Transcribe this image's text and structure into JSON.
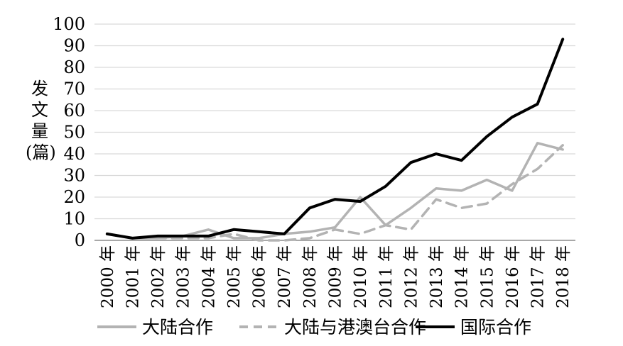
{
  "chart_data": {
    "type": "line",
    "title": "",
    "xlabel": "",
    "ylabel": "发文量(篇)",
    "ylim": [
      0,
      100
    ],
    "yticks": [
      0,
      10,
      20,
      30,
      40,
      50,
      60,
      70,
      80,
      90,
      100
    ],
    "grid": true,
    "legend_position": "bottom",
    "categories": [
      "2000 年",
      "2001 年",
      "2002 年",
      "2003 年",
      "2004 年",
      "2005 年",
      "2006 年",
      "2007 年",
      "2008 年",
      "2009 年",
      "2010 年",
      "2011 年",
      "2012 年",
      "2013 年",
      "2014 年",
      "2015 年",
      "2016 年",
      "2017 年",
      "2018 年"
    ],
    "series": [
      {
        "name": "大陆合作",
        "color": "#b3b3b3",
        "dash": "solid",
        "values": [
          3,
          1,
          1,
          2,
          5,
          1,
          1,
          3,
          4,
          6,
          20,
          7,
          15,
          24,
          23,
          28,
          23,
          45,
          42
        ]
      },
      {
        "name": "大陆与港澳台合作",
        "color": "#b3b3b3",
        "dash": "dashed",
        "values": [
          3,
          1,
          1,
          1,
          1,
          3,
          0,
          0,
          1,
          5,
          3,
          7,
          5,
          19,
          15,
          17,
          26,
          33,
          44
        ]
      },
      {
        "name": "国际合作",
        "color": "#000000",
        "dash": "solid",
        "values": [
          3,
          1,
          2,
          2,
          2,
          5,
          4,
          3,
          15,
          19,
          18,
          25,
          36,
          40,
          37,
          48,
          57,
          63,
          93
        ]
      }
    ]
  }
}
